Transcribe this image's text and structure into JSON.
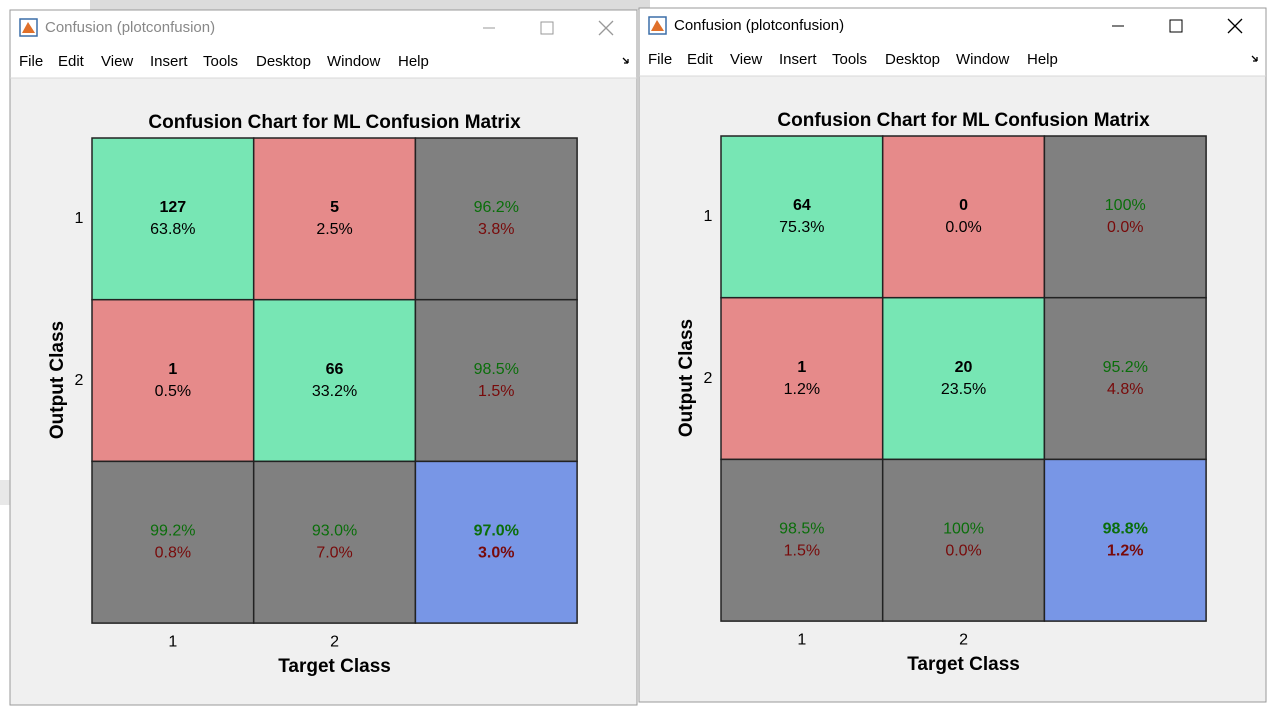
{
  "windows": [
    {
      "title": "Confusion (plotconfusion)",
      "menu": [
        "File",
        "Edit",
        "View",
        "Insert",
        "Tools",
        "Desktop",
        "Window",
        "Help"
      ],
      "chart": {
        "title": "Confusion Chart for ML Confusion Matrix",
        "ylabel": "Output Class",
        "xlabel": "Target Class",
        "row_labels": [
          "1",
          "2"
        ],
        "col_labels": [
          "1",
          "2"
        ],
        "cells": [
          [
            {
              "top": "127",
              "bottom": "63.8%"
            },
            {
              "top": "5",
              "bottom": "2.5%"
            },
            {
              "top": "96.2%",
              "bottom": "3.8%"
            }
          ],
          [
            {
              "top": "1",
              "bottom": "0.5%"
            },
            {
              "top": "66",
              "bottom": "33.2%"
            },
            {
              "top": "98.5%",
              "bottom": "1.5%"
            }
          ],
          [
            {
              "top": "99.2%",
              "bottom": "0.8%"
            },
            {
              "top": "93.0%",
              "bottom": "7.0%"
            },
            {
              "top": "97.0%",
              "bottom": "3.0%"
            }
          ]
        ]
      }
    },
    {
      "title": "Confusion (plotconfusion)",
      "menu": [
        "File",
        "Edit",
        "View",
        "Insert",
        "Tools",
        "Desktop",
        "Window",
        "Help"
      ],
      "chart": {
        "title": "Confusion Chart for ML Confusion Matrix",
        "ylabel": "Output Class",
        "xlabel": "Target Class",
        "row_labels": [
          "1",
          "2"
        ],
        "col_labels": [
          "1",
          "2"
        ],
        "cells": [
          [
            {
              "top": "64",
              "bottom": "75.3%"
            },
            {
              "top": "0",
              "bottom": "0.0%"
            },
            {
              "top": "100%",
              "bottom": "0.0%"
            }
          ],
          [
            {
              "top": "1",
              "bottom": "1.2%"
            },
            {
              "top": "20",
              "bottom": "23.5%"
            },
            {
              "top": "95.2%",
              "bottom": "4.8%"
            }
          ],
          [
            {
              "top": "98.5%",
              "bottom": "1.5%"
            },
            {
              "top": "100%",
              "bottom": "0.0%"
            },
            {
              "top": "98.8%",
              "bottom": "1.2%"
            }
          ]
        ]
      }
    }
  ]
}
